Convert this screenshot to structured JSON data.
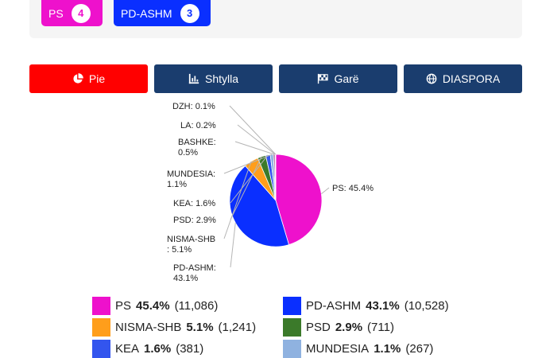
{
  "seat_chips": [
    {
      "party": "PS",
      "seats": "4",
      "color": "#ee11cc"
    },
    {
      "party": "PD-ASHM",
      "seats": "3",
      "color": "#0a2fff"
    }
  ],
  "tabs": [
    {
      "label": "Pie",
      "icon": "pie-chart-icon",
      "color": "#ff0000",
      "active": true
    },
    {
      "label": "Shtylla",
      "icon": "bar-chart-icon",
      "color": "#1a3d6e",
      "active": false
    },
    {
      "label": "Garë",
      "icon": "flag-checkered-icon",
      "color": "#1a3d6e",
      "active": false
    },
    {
      "label": "DIASPORA",
      "icon": "globe-icon",
      "color": "#1a3d6e",
      "active": false
    }
  ],
  "chart_data": {
    "type": "pie",
    "series": [
      {
        "name": "PS",
        "percent": 45.4,
        "votes": 11086,
        "color": "#ee11cc",
        "label": "PS: 45.4%"
      },
      {
        "name": "PD-ASHM",
        "percent": 43.1,
        "votes": 10528,
        "color": "#0a2fff",
        "label": "PD-ASHM: 43.1%"
      },
      {
        "name": "NISMA-SHB",
        "percent": 5.1,
        "votes": 1241,
        "color": "#ff9e1b",
        "label": "NISMA-SHB : 5.1%"
      },
      {
        "name": "PSD",
        "percent": 2.9,
        "votes": 711,
        "color": "#3b7a2a",
        "label": "PSD: 2.9%"
      },
      {
        "name": "KEA",
        "percent": 1.6,
        "votes": 381,
        "color": "#3355ee",
        "label": "KEA: 1.6%"
      },
      {
        "name": "MUNDESIA",
        "percent": 1.1,
        "votes": 267,
        "color": "#8fb2e0",
        "label": "MUNDESIA: 1.1%"
      },
      {
        "name": "BASHKE",
        "percent": 0.5,
        "votes": null,
        "color": "#7a1f6a",
        "label": "BASHKE: 0.5%"
      },
      {
        "name": "LA",
        "percent": 0.2,
        "votes": null,
        "color": "#2ab0a0",
        "label": "LA: 0.2%"
      },
      {
        "name": "DZH",
        "percent": 0.1,
        "votes": null,
        "color": "#c8c8c8",
        "label": "DZH: 0.1%"
      }
    ]
  },
  "legend": [
    {
      "party": "PS",
      "pct": "45.4%",
      "votes": "(11,086)",
      "color": "#ee11cc"
    },
    {
      "party": "PD-ASHM",
      "pct": "43.1%",
      "votes": "(10,528)",
      "color": "#0a2fff"
    },
    {
      "party": "NISMA-SHB",
      "pct": "5.1%",
      "votes": "(1,241)",
      "color": "#ff9e1b"
    },
    {
      "party": "PSD",
      "pct": "2.9%",
      "votes": "(711)",
      "color": "#3b7a2a"
    },
    {
      "party": "KEA",
      "pct": "1.6%",
      "votes": "(381)",
      "color": "#3355ee"
    },
    {
      "party": "MUNDESIA",
      "pct": "1.1%",
      "votes": "(267)",
      "color": "#8fb2e0"
    }
  ]
}
